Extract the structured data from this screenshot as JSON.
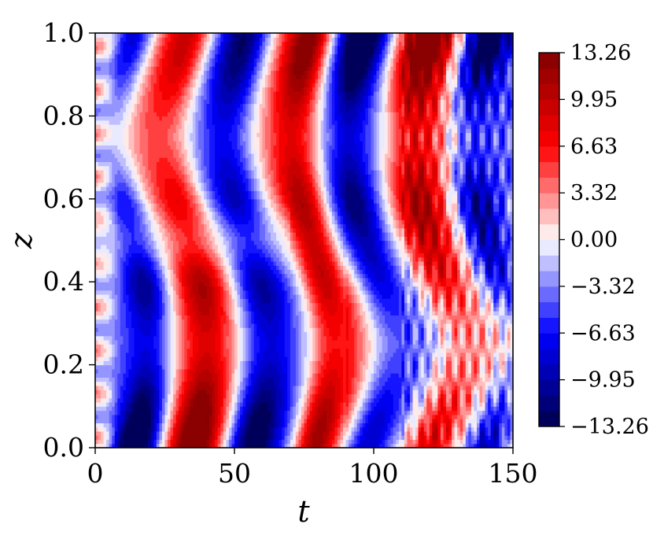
{
  "chart_data": {
    "type": "heatmap",
    "title": "",
    "xlabel": "t",
    "ylabel": "z",
    "xlim": [
      0,
      150
    ],
    "ylim": [
      0,
      1
    ],
    "x_ticks": [
      "0",
      "50",
      "100",
      "150"
    ],
    "y_ticks": [
      "0.0",
      "0.2",
      "0.4",
      "0.6",
      "0.8",
      "1.0"
    ],
    "colorbar": {
      "min": -13.26,
      "max": 13.26,
      "ticks": [
        "13.26",
        "9.95",
        "6.63",
        "3.32",
        "0.00",
        "−3.32",
        "−6.63",
        "−9.95",
        "−13.26"
      ],
      "colormap": "seismic",
      "levels": 24
    },
    "field_model": {
      "description_of_fit": "filled contour of a field antisymmetric about z=0.5, with bands alternating in sign along t",
      "band_centers_t": [
        14,
        34,
        55,
        78,
        97,
        120,
        141
      ],
      "band_signs": [
        -1,
        1,
        -1,
        1,
        -1,
        1,
        -1
      ],
      "peak_value": 13.26
    }
  }
}
